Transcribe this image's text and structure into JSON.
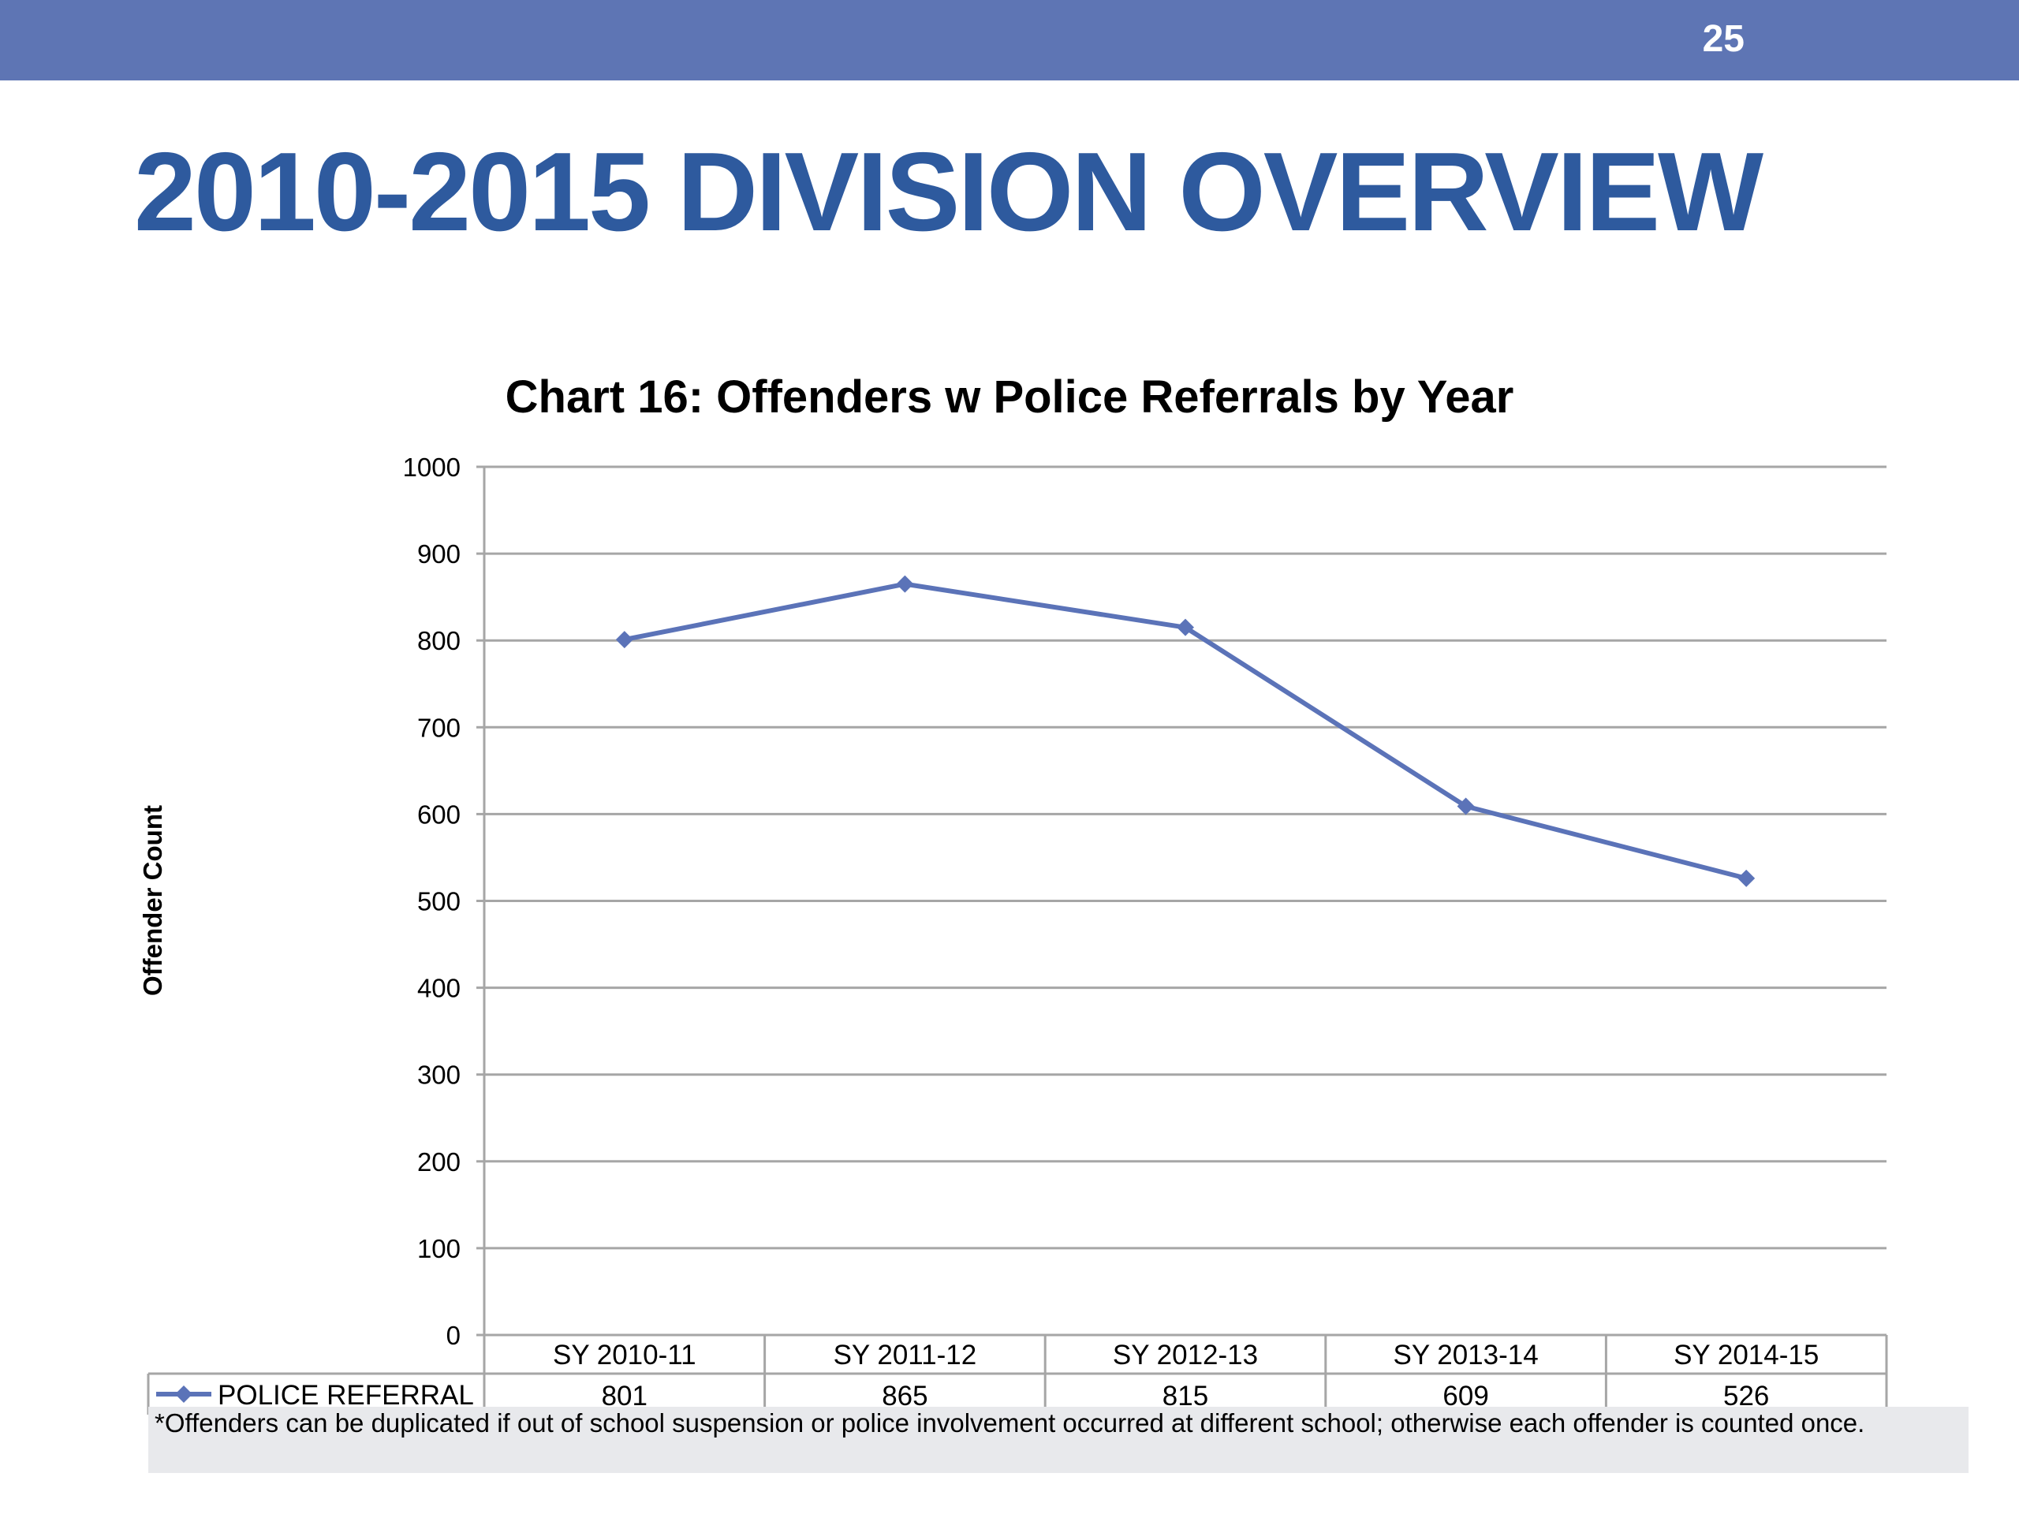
{
  "header": {
    "page_number": "25"
  },
  "slide": {
    "title": "2010-2015 DIVISION OVERVIEW"
  },
  "chart_data": {
    "type": "line",
    "title": "Chart 16: Offenders w Police Referrals by Year",
    "xlabel": "",
    "ylabel": "Offender Count",
    "ylim": [
      0,
      1000
    ],
    "y_ticks": [
      0,
      100,
      200,
      300,
      400,
      500,
      600,
      700,
      800,
      900,
      1000
    ],
    "categories": [
      "SY 2010-11",
      "SY 2011-12",
      "SY 2012-13",
      "SY 2013-14",
      "SY 2014-15"
    ],
    "series": [
      {
        "name": "POLICE REFERRAL",
        "values": [
          801,
          865,
          815,
          609,
          526
        ],
        "color": "#5b73b8",
        "marker": "diamond"
      }
    ],
    "grid": true,
    "legend": "data-table",
    "data_table": true
  },
  "footnote": "*Offenders can be duplicated if out of school suspension or police involvement occurred at different school; otherwise each offender is counted once.",
  "colors": {
    "header_bar": "#5e75b4",
    "title": "#2e5a9e",
    "series_line": "#5b73b8",
    "gridline": "#a6a6a6",
    "footnote_bg": "#e8e9ec"
  }
}
